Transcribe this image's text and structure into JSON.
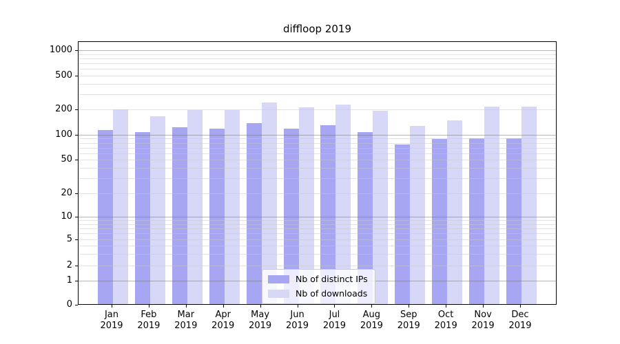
{
  "chart_data": {
    "type": "bar",
    "title": "diffloop 2019",
    "categories": [
      "Jan",
      "Feb",
      "Mar",
      "Apr",
      "May",
      "Jun",
      "Jul",
      "Aug",
      "Sep",
      "Oct",
      "Nov",
      "Dec"
    ],
    "x_year_label": "2019",
    "series": [
      {
        "name": "Nb of distinct IPs",
        "color": "#a6a6f3",
        "values": [
          115,
          107,
          124,
          119,
          138,
          118,
          130,
          107,
          76,
          89,
          91,
          91
        ]
      },
      {
        "name": "Nb of downloads",
        "color": "#d7d7f8",
        "values": [
          200,
          167,
          196,
          197,
          243,
          210,
          228,
          193,
          128,
          149,
          215,
          216
        ]
      }
    ],
    "yscale": "symlog",
    "yticks": [
      1000,
      500,
      200,
      100,
      50,
      20,
      10,
      5,
      2,
      1,
      0
    ],
    "ylim": [
      0,
      1280
    ],
    "grid": true,
    "legend_position": "lower-center",
    "colors": {
      "major_grid": "#c7c7c7",
      "minor_grid": "#e9e9e9",
      "axis": "#000000",
      "background": "#ffffff"
    }
  }
}
